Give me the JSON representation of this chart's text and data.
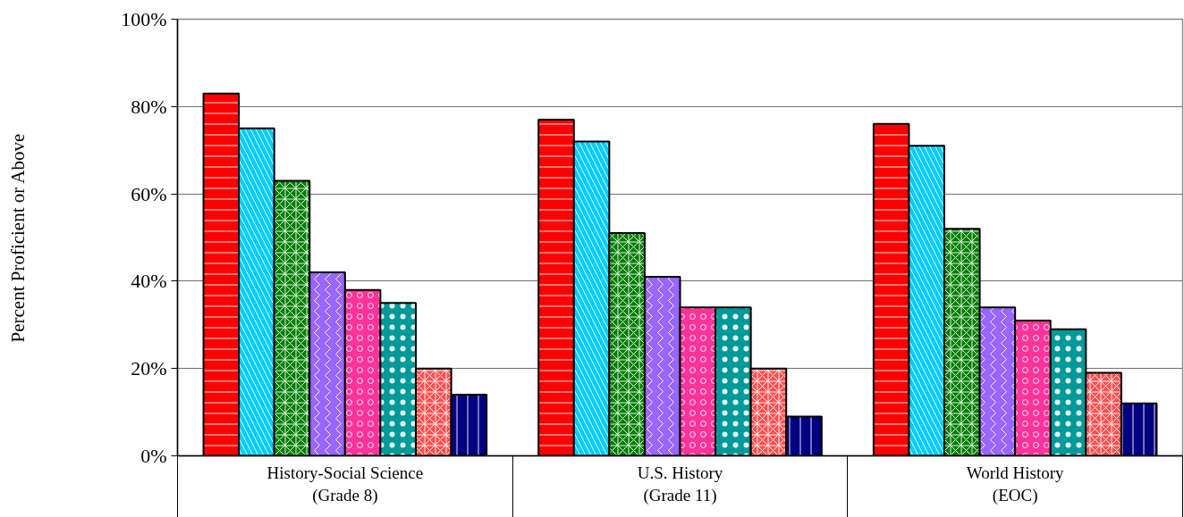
{
  "chart_data": {
    "type": "bar",
    "ylabel": "Percent Proficient or Above",
    "categories": [
      "History-Social Science\n(Grade 8)",
      "U.S. History\n(Grade 11)",
      "World History\n(EOC)"
    ],
    "series": [
      {
        "color": "#ff0000",
        "values": [
          83,
          77,
          76
        ]
      },
      {
        "color": "#00ccff",
        "values": [
          75,
          72,
          71
        ]
      },
      {
        "color": "#008000",
        "values": [
          63,
          51,
          52
        ]
      },
      {
        "color": "#9966ff",
        "values": [
          42,
          41,
          34
        ]
      },
      {
        "color": "#ff3399",
        "values": [
          38,
          34,
          31
        ]
      },
      {
        "color": "#009999",
        "values": [
          35,
          34,
          29
        ]
      },
      {
        "color": "#ff5050",
        "values": [
          20,
          20,
          19
        ]
      },
      {
        "color": "#000080",
        "values": [
          14,
          9,
          12
        ]
      }
    ],
    "ylim": [
      0,
      100
    ],
    "yticks": [
      {
        "value": 0,
        "label": "0%"
      },
      {
        "value": 20,
        "label": "20%"
      },
      {
        "value": 40,
        "label": "40%"
      },
      {
        "value": 60,
        "label": "60%"
      },
      {
        "value": 80,
        "label": "80%"
      },
      {
        "value": 100,
        "label": "100%"
      }
    ],
    "grid": "y"
  }
}
